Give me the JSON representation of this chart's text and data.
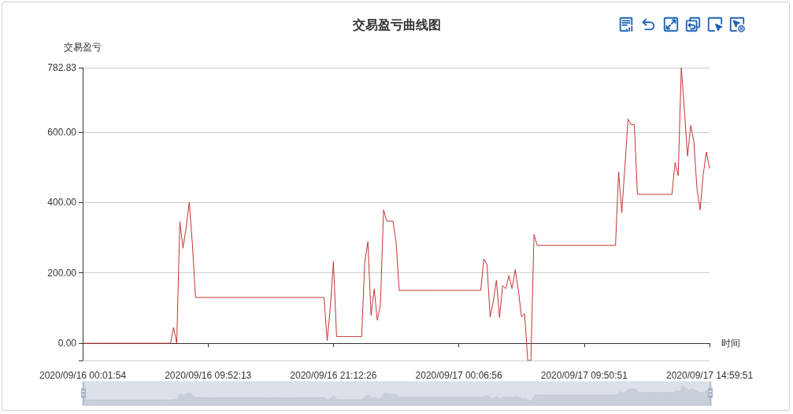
{
  "chart_data": {
    "type": "line",
    "title": "交易盈亏曲线图",
    "xlabel": "时间",
    "ylabel": "交易盈亏",
    "categories": [
      "2020/09/16 00:01:54",
      null,
      null,
      null,
      null,
      null,
      null,
      null,
      null,
      null,
      null,
      null,
      null,
      null,
      null,
      null,
      null,
      null,
      null,
      null,
      null,
      null,
      null,
      null,
      null,
      null,
      null,
      null,
      null,
      null,
      null,
      null,
      null,
      null,
      null,
      null,
      null,
      null,
      null,
      null,
      "2020/09/16 09:52:13",
      null,
      null,
      null,
      null,
      null,
      null,
      null,
      null,
      null,
      null,
      null,
      null,
      null,
      null,
      null,
      null,
      null,
      null,
      null,
      null,
      null,
      null,
      null,
      null,
      null,
      null,
      null,
      null,
      null,
      null,
      null,
      null,
      null,
      null,
      null,
      null,
      null,
      null,
      null,
      "2020/09/16 21:12:26",
      null,
      null,
      null,
      null,
      null,
      null,
      null,
      null,
      null,
      null,
      null,
      null,
      null,
      null,
      null,
      null,
      null,
      null,
      null,
      null,
      null,
      null,
      null,
      null,
      null,
      null,
      null,
      null,
      null,
      null,
      null,
      null,
      null,
      null,
      null,
      null,
      null,
      null,
      null,
      "2020/09/17 00:06:56",
      null,
      null,
      null,
      null,
      null,
      null,
      null,
      null,
      null,
      null,
      null,
      null,
      null,
      null,
      null,
      null,
      null,
      null,
      null,
      null,
      null,
      null,
      null,
      null,
      null,
      null,
      null,
      null,
      null,
      null,
      null,
      null,
      null,
      null,
      null,
      null,
      null,
      null,
      null,
      "2020/09/17 09:50:51",
      null,
      null,
      null,
      null,
      null,
      null,
      null,
      null,
      null,
      null,
      null,
      null,
      null,
      null,
      null,
      null,
      null,
      null,
      null,
      null,
      null,
      null,
      null,
      null,
      null,
      null,
      null,
      null,
      null,
      null,
      null,
      null,
      null,
      null,
      null,
      null,
      null,
      null,
      null,
      "2020/09/17 14:59:51"
    ],
    "values": [
      0,
      0,
      0,
      0,
      0,
      0,
      0,
      0,
      0,
      0,
      0,
      0,
      0,
      0,
      0,
      0,
      0,
      0,
      0,
      0,
      0,
      0,
      0,
      0,
      0,
      0,
      0,
      0,
      0,
      45,
      0,
      345,
      270,
      328,
      401,
      282,
      130,
      130,
      130,
      130,
      130,
      130,
      130,
      130,
      130,
      130,
      130,
      130,
      130,
      130,
      130,
      130,
      130,
      130,
      130,
      130,
      130,
      130,
      130,
      130,
      130,
      130,
      130,
      130,
      130,
      130,
      130,
      130,
      130,
      130,
      130,
      130,
      130,
      130,
      130,
      130,
      130,
      130,
      7,
      100,
      232,
      19,
      19,
      19,
      19,
      19,
      19,
      19,
      19,
      19,
      230,
      289,
      80,
      154,
      66,
      109,
      379,
      347,
      347,
      347,
      286,
      150,
      150,
      150,
      150,
      150,
      150,
      150,
      150,
      150,
      150,
      150,
      150,
      150,
      150,
      150,
      150,
      150,
      150,
      150,
      150,
      150,
      150,
      150,
      150,
      150,
      150,
      150,
      239,
      224,
      75,
      118,
      179,
      73,
      164,
      155,
      192,
      155,
      209,
      151,
      75,
      84,
      -49,
      -49,
      309,
      278,
      278,
      278,
      278,
      278,
      278,
      278,
      278,
      278,
      278,
      278,
      278,
      278,
      278,
      278,
      278,
      278,
      278,
      278,
      278,
      278,
      278,
      278,
      278,
      278,
      278,
      487,
      371,
      502,
      637,
      621,
      621,
      423,
      423,
      423,
      423,
      423,
      423,
      423,
      423,
      423,
      423,
      423,
      423,
      513,
      476,
      782.83,
      660,
      532,
      619,
      573,
      438,
      379,
      480,
      543,
      497
    ],
    "color": "#c23531",
    "ylim": [
      -49,
      782.83
    ],
    "yticks": [
      {
        "value": -49,
        "label": null
      },
      {
        "value": 0,
        "label": "0.00"
      },
      {
        "value": 200,
        "label": "200.00"
      },
      {
        "value": 400,
        "label": "400.00"
      },
      {
        "value": 600,
        "label": "600.00"
      },
      782.83
    ],
    "grid": "y",
    "marker": "none"
  }
}
